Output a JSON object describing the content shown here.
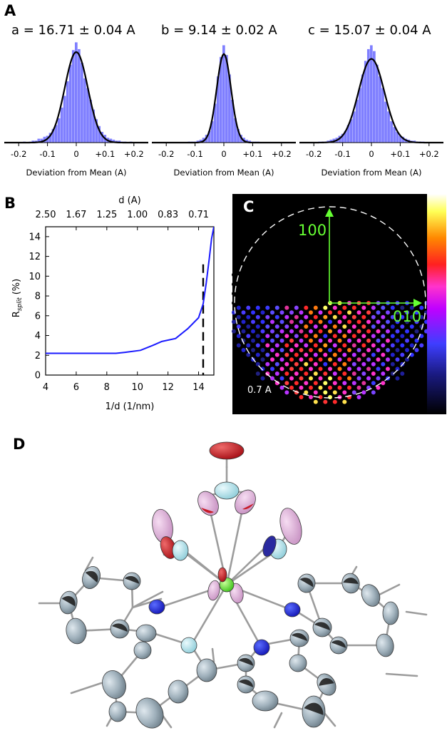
{
  "panels": {
    "A": {
      "label": "A",
      "xlabel": "Deviation from Mean (A)",
      "ticks": [
        "-0.2",
        "-0.1",
        "0",
        "+0.1",
        "+0.2"
      ],
      "tick_values": [
        -0.2,
        -0.1,
        0,
        0.1,
        0.2
      ],
      "hist_color": "#7f7fff",
      "fit_color": "#000000"
    },
    "B": {
      "label": "B",
      "top_label": "d (A)",
      "ylabel_main": "R",
      "ylabel_sub": "split",
      "ylabel_unit": "(%)",
      "xlabel": "1/d (1/nm)",
      "line_color": "#1a1aff"
    },
    "C": {
      "label": "C",
      "axis_100": "100",
      "axis_010": "010",
      "resolution_label": "0.7 A",
      "arrow_color": "#66ff33"
    },
    "D": {
      "label": "D"
    }
  },
  "chart_data": [
    {
      "type": "bar",
      "title": "a = 16.71 ± 0.04 A",
      "xlabel": "Deviation from Mean (A)",
      "xlim": [
        -0.25,
        0.25
      ],
      "ticks": [
        -0.2,
        -0.1,
        0,
        0.1,
        0.2
      ],
      "bin_width": 0.01,
      "bins_center": [
        -0.2,
        -0.19,
        -0.18,
        -0.17,
        -0.16,
        -0.15,
        -0.14,
        -0.13,
        -0.12,
        -0.11,
        -0.1,
        -0.09,
        -0.08,
        -0.07,
        -0.06,
        -0.05,
        -0.04,
        -0.03,
        -0.02,
        -0.01,
        0,
        0.01,
        0.02,
        0.03,
        0.04,
        0.05,
        0.06,
        0.07,
        0.08,
        0.09,
        0.1,
        0.11,
        0.12,
        0.13,
        0.14,
        0.15,
        0.16,
        0.17,
        0.18,
        0.19,
        0.2
      ],
      "values": [
        0,
        0,
        1,
        0,
        1,
        2,
        2,
        4,
        4,
        6,
        7,
        10,
        14,
        18,
        25,
        36,
        48,
        63,
        80,
        95,
        103,
        96,
        82,
        66,
        56,
        44,
        34,
        24,
        17,
        11,
        8,
        5,
        4,
        3,
        2,
        2,
        1,
        1,
        0,
        1,
        0
      ],
      "fit": {
        "type": "gaussian",
        "mean": 0.0,
        "sigma": 0.04,
        "peak": 93
      }
    },
    {
      "type": "bar",
      "title": "b = 9.14 ± 0.02 A",
      "xlabel": "Deviation from Mean (A)",
      "xlim": [
        -0.25,
        0.25
      ],
      "ticks": [
        -0.2,
        -0.1,
        0,
        0.1,
        0.2
      ],
      "bin_width": 0.01,
      "bins_center": [
        -0.2,
        -0.19,
        -0.18,
        -0.17,
        -0.16,
        -0.15,
        -0.14,
        -0.13,
        -0.12,
        -0.11,
        -0.1,
        -0.09,
        -0.08,
        -0.07,
        -0.06,
        -0.05,
        -0.04,
        -0.03,
        -0.02,
        -0.01,
        0,
        0.01,
        0.02,
        0.03,
        0.04,
        0.05,
        0.06,
        0.07,
        0.08,
        0.09,
        0.1,
        0.11,
        0.12,
        0.13,
        0.14,
        0.15,
        0.16,
        0.17,
        0.18,
        0.19,
        0.2
      ],
      "values": [
        0,
        0,
        0,
        0,
        0,
        0,
        0,
        0,
        1,
        1,
        1,
        2,
        3,
        5,
        8,
        12,
        22,
        40,
        68,
        88,
        100,
        90,
        70,
        44,
        25,
        14,
        8,
        5,
        3,
        2,
        1,
        1,
        1,
        0,
        0,
        0,
        0,
        0,
        0,
        0,
        0
      ],
      "fit": {
        "type": "gaussian",
        "mean": 0.0,
        "sigma": 0.025,
        "peak": 91
      }
    },
    {
      "type": "bar",
      "title": "c = 15.07 ± 0.04 A",
      "xlabel": "Deviation from Mean (A)",
      "xlim": [
        -0.25,
        0.25
      ],
      "ticks": [
        -0.2,
        -0.1,
        0,
        0.1,
        0.2
      ],
      "bin_width": 0.01,
      "bins_center": [
        -0.2,
        -0.19,
        -0.18,
        -0.17,
        -0.16,
        -0.15,
        -0.14,
        -0.13,
        -0.12,
        -0.11,
        -0.1,
        -0.09,
        -0.08,
        -0.07,
        -0.06,
        -0.05,
        -0.04,
        -0.03,
        -0.02,
        -0.01,
        0,
        0.01,
        0.02,
        0.03,
        0.04,
        0.05,
        0.06,
        0.07,
        0.08,
        0.09,
        0.1,
        0.11,
        0.12,
        0.13,
        0.14,
        0.15,
        0.16,
        0.17,
        0.18,
        0.19,
        0.2
      ],
      "values": [
        0,
        0,
        1,
        1,
        1,
        2,
        3,
        4,
        5,
        7,
        9,
        12,
        18,
        24,
        32,
        44,
        56,
        70,
        84,
        96,
        100,
        94,
        80,
        68,
        56,
        42,
        32,
        22,
        16,
        11,
        7,
        6,
        4,
        3,
        2,
        2,
        1,
        1,
        1,
        0,
        0
      ],
      "fit": {
        "type": "gaussian",
        "mean": 0.0,
        "sigma": 0.045,
        "peak": 86
      }
    },
    {
      "type": "line",
      "title": "",
      "xlabel": "1/d (1/nm)",
      "ylabel": "Rsplit (%)",
      "xlim": [
        4,
        15
      ],
      "ylim": [
        0,
        15
      ],
      "x_ticks": [
        4,
        6,
        8,
        10,
        12,
        14
      ],
      "y_ticks": [
        0,
        2,
        4,
        6,
        8,
        10,
        12,
        14
      ],
      "top_axis_label": "d (A)",
      "top_ticks": [
        "2.50",
        "1.67",
        "1.25",
        "1.00",
        "0.83",
        "0.71"
      ],
      "top_tick_positions": [
        4,
        6,
        8,
        10,
        12,
        14
      ],
      "cutoff_x": 14.3,
      "series": [
        {
          "x": [
            4.0,
            5.0,
            6.0,
            7.0,
            8.0,
            8.6,
            9.2,
            10.2,
            11.0,
            11.6,
            12.5,
            13.3,
            14.0,
            14.3,
            14.5,
            14.7,
            14.85,
            15.0
          ],
          "values": [
            2.2,
            2.2,
            2.2,
            2.2,
            2.2,
            2.2,
            2.3,
            2.5,
            3.0,
            3.4,
            3.7,
            4.7,
            5.8,
            7.2,
            9.3,
            11.8,
            13.8,
            15.0
          ]
        }
      ]
    }
  ]
}
